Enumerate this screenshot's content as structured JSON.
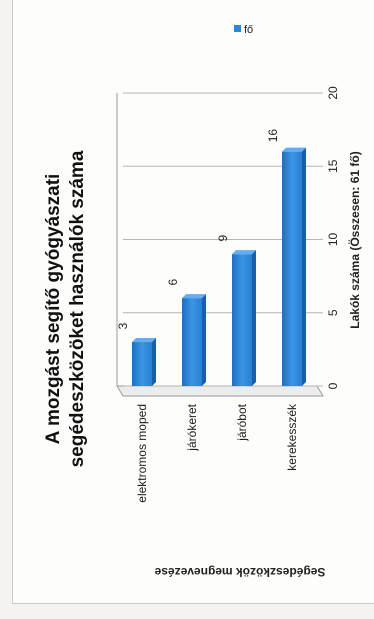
{
  "chart_data": {
    "type": "bar",
    "orientation": "horizontal",
    "title_line1": "A mozgást segítő gyógyászati",
    "title_line2": "segédeszközöket  használók száma",
    "categories": [
      "elektromos moped",
      "járókeret",
      "járóbot",
      "kerekesszék"
    ],
    "series": [
      {
        "name": "fő",
        "values": [
          3,
          6,
          9,
          16
        ],
        "color": "#2e86d6"
      }
    ],
    "data_labels": [
      "3",
      "6",
      "9",
      "16"
    ],
    "xlabel": "Lakók száma (Összesen: 61 fő)",
    "ylabel": "Segédeszközök megnevezése",
    "xlim": [
      0,
      20
    ],
    "xticks": [
      "0",
      "5",
      "10",
      "15",
      "20"
    ],
    "grid": true,
    "legend": "top-right"
  }
}
